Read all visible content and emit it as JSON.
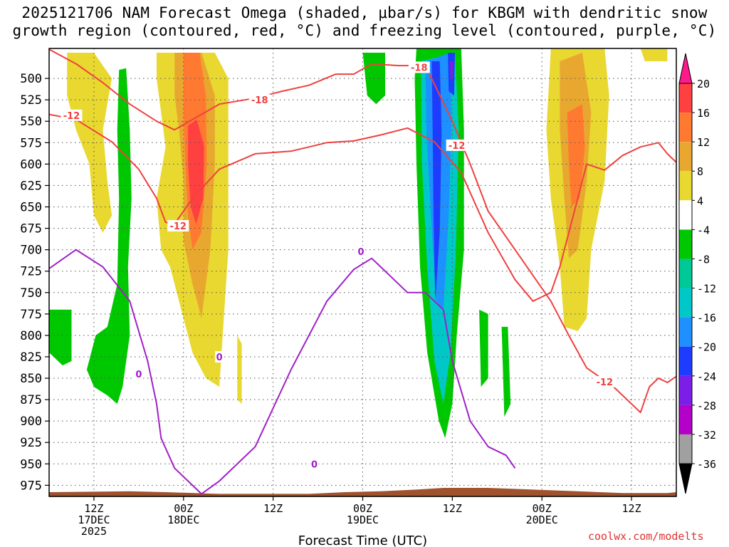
{
  "title": {
    "line1": "2025121706 NAM Forecast Omega (shaded, μbar/s) for KBGM with dendritic snow",
    "line2": "growth region (contoured, red, °C) and freezing level (contoured, purple, °C)"
  },
  "credit": "coolwx.com/modelts",
  "chart_data": {
    "type": "time-height cross section (filled contour + line contours)",
    "title": "2025121706 NAM Forecast Omega (shaded, μbar/s) for KBGM with dendritic snow growth region (contoured, red, °C) and freezing level (contoured, purple, °C)",
    "xlabel": "Forecast Time (UTC)",
    "ylabel": "",
    "x_range_hours_from_17DEC00Z": [
      1,
      71
    ],
    "y_range_mb": [
      465,
      988
    ],
    "y_axis_inverted": true,
    "y_ticks": [
      500,
      525,
      550,
      575,
      600,
      625,
      650,
      675,
      700,
      725,
      750,
      775,
      800,
      825,
      850,
      875,
      900,
      925,
      950,
      975
    ],
    "x_ticks": [
      {
        "hour": 6,
        "line1": "12Z",
        "line2": "17DEC",
        "line3": "2025"
      },
      {
        "hour": 16,
        "line1": "00Z",
        "line2": "18DEC",
        "line3": ""
      },
      {
        "hour": 26,
        "line1": "12Z",
        "line2": "",
        "line3": ""
      },
      {
        "hour": 36,
        "line1": "00Z",
        "line2": "19DEC",
        "line3": ""
      },
      {
        "hour": 46,
        "line1": "12Z",
        "line2": "",
        "line3": ""
      },
      {
        "hour": 56,
        "line1": "00Z",
        "line2": "20DEC",
        "line3": ""
      },
      {
        "hour": 66,
        "line1": "12Z",
        "line2": "",
        "line3": ""
      }
    ],
    "grid": true,
    "colorbar": {
      "levels": [
        20,
        16,
        12,
        8,
        4,
        -4,
        -8,
        -12,
        -16,
        -20,
        -24,
        -28,
        -32,
        -36
      ],
      "colors": [
        "#ff1a8c",
        "#ff4040",
        "#ff7a30",
        "#e8a830",
        "#e8d830",
        "#ffffff",
        "#00c800",
        "#00c896",
        "#00c8c8",
        "#1e90ff",
        "#1e3cff",
        "#7a1ee8",
        "#b400c8",
        "#a0a0a0",
        "#000000"
      ]
    },
    "shaded_regions": [
      {
        "label": "ascent -4 to -8",
        "color": "#00c800",
        "t": [
          8,
          10.2
        ],
        "p": [
          485,
          880
        ]
      },
      {
        "label": "ascent -4 to -8",
        "color": "#00c800",
        "t": [
          1,
          3.6
        ],
        "p": [
          770,
          830
        ]
      },
      {
        "label": "ascent -4 to -8",
        "color": "#00c800",
        "t": [
          36,
          38.5
        ],
        "p": [
          460,
          530
        ]
      },
      {
        "label": "ascent core to -28",
        "color": "#7a1ee8",
        "t": [
          42,
          47
        ],
        "p": [
          460,
          920
        ]
      },
      {
        "label": "ascent -4 to -8",
        "color": "#00c800",
        "t": [
          49,
          50
        ],
        "p": [
          770,
          860
        ]
      },
      {
        "label": "ascent -4 to -8",
        "color": "#00c800",
        "t": [
          51.5,
          52.5
        ],
        "p": [
          790,
          895
        ]
      },
      {
        "label": "descent 4 to 8",
        "color": "#e8d830",
        "t": [
          3,
          8
        ],
        "p": [
          470,
          680
        ]
      },
      {
        "label": "descent to 16",
        "color": "#ff4040",
        "t": [
          14,
          21
        ],
        "p": [
          465,
          860
        ]
      },
      {
        "label": "descent 4 to 8",
        "color": "#e8d830",
        "t": [
          57,
          63
        ],
        "p": [
          465,
          795
        ]
      }
    ],
    "series": [
      {
        "name": "-12 °C (dendritic growth bottom)",
        "color": "#f04040",
        "label": "-12",
        "points": [
          [
            1,
            542
          ],
          [
            4,
            548
          ],
          [
            8,
            574
          ],
          [
            11,
            606
          ],
          [
            13,
            640
          ],
          [
            14,
            668
          ],
          [
            15,
            670
          ],
          [
            17,
            640
          ],
          [
            20,
            606
          ],
          [
            24,
            588
          ],
          [
            28,
            585
          ],
          [
            32,
            575
          ],
          [
            35,
            573
          ],
          [
            38,
            566
          ],
          [
            41,
            558
          ],
          [
            44,
            574
          ],
          [
            47,
            610
          ],
          [
            50,
            680
          ],
          [
            53,
            735
          ],
          [
            55,
            760
          ],
          [
            57,
            750
          ],
          [
            58,
            720
          ],
          [
            60,
            640
          ],
          [
            61,
            600
          ],
          [
            63,
            607
          ],
          [
            65,
            590
          ],
          [
            67,
            580
          ],
          [
            69,
            575
          ],
          [
            70,
            588
          ],
          [
            71,
            598
          ]
        ]
      },
      {
        "name": "-18 °C (dendritic growth top)",
        "color": "#f04040",
        "label": "-18",
        "points": [
          [
            1,
            466
          ],
          [
            4,
            483
          ],
          [
            7,
            505
          ],
          [
            10,
            530
          ],
          [
            13,
            550
          ],
          [
            15,
            560
          ],
          [
            17,
            548
          ],
          [
            20,
            530
          ],
          [
            24,
            523
          ],
          [
            27,
            515
          ],
          [
            30,
            508
          ],
          [
            33,
            495
          ],
          [
            35,
            495
          ],
          [
            37,
            483
          ],
          [
            40,
            485
          ],
          [
            43,
            485
          ],
          [
            46,
            550
          ],
          [
            48,
            600
          ],
          [
            50,
            655
          ],
          [
            53,
            700
          ],
          [
            55,
            730
          ],
          [
            57,
            760
          ],
          [
            59,
            800
          ],
          [
            61,
            838
          ],
          [
            64,
            860
          ],
          [
            67,
            890
          ],
          [
            68,
            860
          ],
          [
            69,
            850
          ],
          [
            70,
            855
          ],
          [
            71,
            848
          ]
        ]
      },
      {
        "name": "0 °C freezing level",
        "color": "#a020c8",
        "label": "0",
        "points": [
          [
            1,
            722
          ],
          [
            4,
            700
          ],
          [
            7,
            720
          ],
          [
            10,
            760
          ],
          [
            12,
            830
          ],
          [
            13,
            880
          ],
          [
            13.5,
            920
          ],
          [
            15,
            955
          ],
          [
            17,
            975
          ],
          [
            18,
            985
          ],
          [
            20,
            970
          ],
          [
            24,
            930
          ],
          [
            28,
            840
          ],
          [
            32,
            760
          ],
          [
            35,
            723
          ],
          [
            37,
            710
          ],
          [
            39,
            730
          ],
          [
            41,
            750
          ],
          [
            43,
            750
          ],
          [
            44,
            760
          ],
          [
            45,
            770
          ],
          [
            46,
            830
          ],
          [
            48,
            900
          ],
          [
            50,
            930
          ],
          [
            52,
            940
          ],
          [
            53,
            955
          ]
        ]
      }
    ],
    "contour_labels": [
      {
        "text": "-12",
        "t": 3.5,
        "p": 543
      },
      {
        "text": "-18",
        "t": 24.5,
        "p": 525
      },
      {
        "text": "-18",
        "t": 42.3,
        "p": 487
      },
      {
        "text": "-12",
        "t": 15.4,
        "p": 672
      },
      {
        "text": "-12",
        "t": 46.5,
        "p": 578
      },
      {
        "text": "-12",
        "t": 63,
        "p": 854
      },
      {
        "text": "0",
        "t": 35.8,
        "p": 702
      },
      {
        "text": "0",
        "t": 20,
        "p": 825
      },
      {
        "text": "0",
        "t": 11,
        "p": 845
      },
      {
        "text": "0",
        "t": 30.6,
        "p": 950
      }
    ]
  }
}
